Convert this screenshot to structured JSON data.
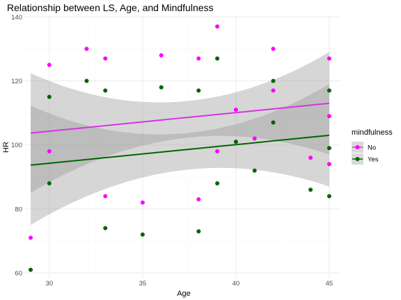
{
  "chart_data": {
    "type": "scatter",
    "title": "Relationship between LS, Age, and Mindfulness",
    "xlabel": "Age",
    "ylabel": "HR",
    "xlim": [
      28.7,
      45.6
    ],
    "ylim": [
      58.5,
      140.5
    ],
    "x_ticks": [
      30,
      35,
      40,
      45
    ],
    "y_ticks": [
      60,
      80,
      100,
      120,
      140
    ],
    "grid": true,
    "legend": {
      "title": "mindfulness",
      "placement": "right"
    },
    "series": [
      {
        "name": "No",
        "color": "#ff00ff",
        "line_color": "#d633e0",
        "points": [
          {
            "x": 29,
            "y": 71
          },
          {
            "x": 30,
            "y": 98
          },
          {
            "x": 30,
            "y": 125
          },
          {
            "x": 32,
            "y": 130
          },
          {
            "x": 33,
            "y": 127
          },
          {
            "x": 33,
            "y": 84
          },
          {
            "x": 35,
            "y": 82
          },
          {
            "x": 36,
            "y": 128
          },
          {
            "x": 38,
            "y": 127
          },
          {
            "x": 38,
            "y": 83
          },
          {
            "x": 39,
            "y": 137
          },
          {
            "x": 39,
            "y": 98
          },
          {
            "x": 40,
            "y": 111
          },
          {
            "x": 41,
            "y": 102
          },
          {
            "x": 42,
            "y": 130
          },
          {
            "x": 42,
            "y": 117
          },
          {
            "x": 44,
            "y": 96
          },
          {
            "x": 45,
            "y": 127
          },
          {
            "x": 45,
            "y": 109
          },
          {
            "x": 45,
            "y": 94
          }
        ],
        "fit": {
          "x0": 29,
          "y0": 103.7,
          "x1": 45,
          "y1": 113.0
        },
        "ci": [
          {
            "x": 29,
            "lo": 85.0,
            "hi": 122.4
          },
          {
            "x": 37,
            "lo": 102.0,
            "hi": 113.5
          },
          {
            "x": 45,
            "lo": 97.0,
            "hi": 129.0
          }
        ]
      },
      {
        "name": "Yes",
        "color": "#006400",
        "line_color": "#006400",
        "points": [
          {
            "x": 29,
            "y": 61
          },
          {
            "x": 30,
            "y": 115
          },
          {
            "x": 30,
            "y": 88
          },
          {
            "x": 32,
            "y": 120
          },
          {
            "x": 33,
            "y": 117
          },
          {
            "x": 33,
            "y": 74
          },
          {
            "x": 35,
            "y": 72
          },
          {
            "x": 36,
            "y": 118
          },
          {
            "x": 38,
            "y": 117
          },
          {
            "x": 38,
            "y": 73
          },
          {
            "x": 39,
            "y": 127
          },
          {
            "x": 39,
            "y": 88
          },
          {
            "x": 40,
            "y": 101
          },
          {
            "x": 41,
            "y": 92
          },
          {
            "x": 42,
            "y": 120
          },
          {
            "x": 42,
            "y": 107
          },
          {
            "x": 44,
            "y": 86
          },
          {
            "x": 45,
            "y": 117
          },
          {
            "x": 45,
            "y": 99
          },
          {
            "x": 45,
            "y": 84
          }
        ],
        "fit": {
          "x0": 29,
          "y0": 93.7,
          "x1": 45,
          "y1": 103.0
        },
        "ci": [
          {
            "x": 29,
            "lo": 75.0,
            "hi": 112.3
          },
          {
            "x": 37,
            "lo": 92.0,
            "hi": 103.5
          },
          {
            "x": 45,
            "lo": 87.0,
            "hi": 119.0
          }
        ]
      }
    ]
  }
}
